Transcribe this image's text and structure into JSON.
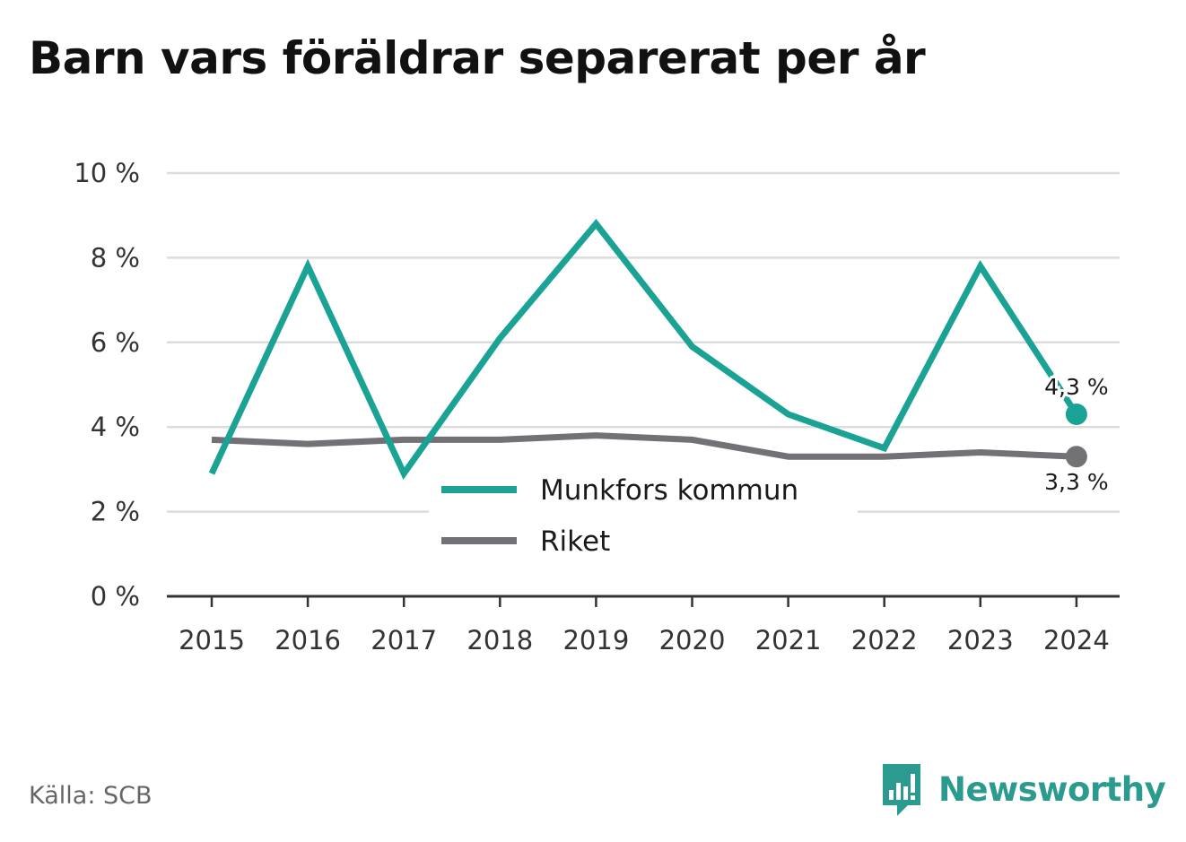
{
  "title": "Barn vars föräldrar separerat per år",
  "source": "Källa: SCB",
  "brand": {
    "name": "Newsworthy",
    "icon": "newsworthy-logo-icon",
    "color": "#2b9a8f"
  },
  "chart_data": {
    "type": "line",
    "title": "Barn vars föräldrar separerat per år",
    "x": [
      "2015",
      "2016",
      "2017",
      "2018",
      "2019",
      "2020",
      "2021",
      "2022",
      "2023",
      "2024"
    ],
    "series": [
      {
        "name": "Munkfors kommun",
        "color": "#1aa394",
        "values": [
          2.9,
          7.8,
          2.9,
          6.1,
          8.8,
          5.9,
          4.3,
          3.5,
          7.8,
          4.3
        ]
      },
      {
        "name": "Riket",
        "color": "#727276",
        "values": [
          3.7,
          3.6,
          3.7,
          3.7,
          3.8,
          3.7,
          3.3,
          3.3,
          3.4,
          3.3
        ]
      }
    ],
    "end_labels": [
      "4,3 %",
      "3,3 %"
    ],
    "y_ticks": [
      "0 %",
      "2 %",
      "4 %",
      "6 %",
      "8 %",
      "10 %"
    ],
    "ylim": [
      0,
      10
    ],
    "grid": true,
    "legend": "center"
  }
}
